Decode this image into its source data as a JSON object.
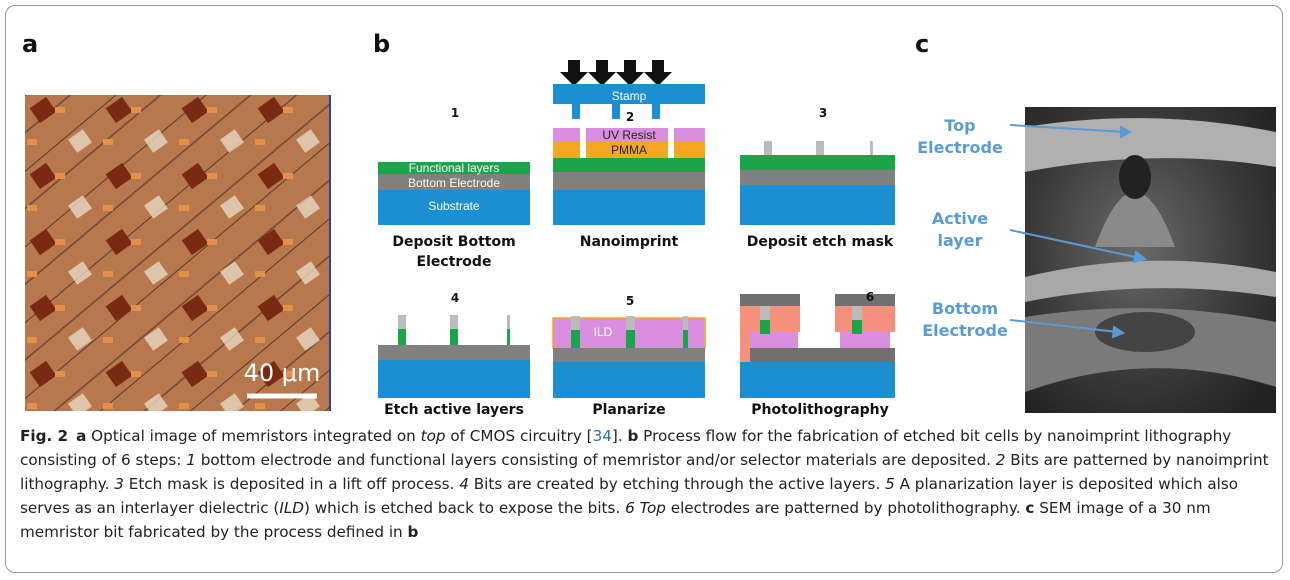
{
  "panels": [
    {
      "label": "a"
    },
    {
      "label": "b"
    },
    {
      "label": "c"
    }
  ],
  "panel_a": {
    "scale_bar": "40 μm"
  },
  "panel_b": {
    "steps": [
      {
        "number": "1",
        "caption": "Deposit Bottom Electrode",
        "layers": [
          "Functional layers",
          "Bottom Electrode",
          "Substrate"
        ]
      },
      {
        "number": "2",
        "caption": "Nanoimprint",
        "layers": [
          "Stamp",
          "UV Resist",
          "PMMA"
        ]
      },
      {
        "number": "3",
        "caption": "Deposit etch mask"
      },
      {
        "number": "4",
        "caption": "Etch active layers"
      },
      {
        "number": "5",
        "caption": "Planarize",
        "layers": [
          "ILD"
        ]
      },
      {
        "number": "6",
        "caption": "Photolithography"
      }
    ]
  },
  "panel_c": {
    "labels": [
      "Top Electrode",
      "Active layer",
      "Bottom Electrode"
    ]
  },
  "caption": {
    "parts": [
      {
        "text": "Fig. 2",
        "style": "bold"
      },
      {
        "text": "a",
        "style": "bold"
      },
      {
        "text": " Optical image of memristors integrated on ",
        "style": "normal"
      },
      {
        "text": "top",
        "style": "italic"
      },
      {
        "text": " of CMOS circuitry [",
        "style": "normal"
      },
      {
        "text": "34",
        "style": "link"
      },
      {
        "text": "]. ",
        "style": "normal"
      },
      {
        "text": "b",
        "style": "bold"
      },
      {
        "text": " Process flow for the fabrication of etched bit cells by nanoimprint lithography consisting of 6 steps: ",
        "style": "normal"
      },
      {
        "text": "1",
        "style": "italic"
      },
      {
        "text": " bottom electrode and functional layers consisting of memristor and/or selector materials are deposited. ",
        "style": "normal"
      },
      {
        "text": "2",
        "style": "italic"
      },
      {
        "text": " Bits are patterned by nanoimprint lithography. ",
        "style": "normal"
      },
      {
        "text": "3",
        "style": "italic"
      },
      {
        "text": " Etch mask is deposited in a lift off process. ",
        "style": "normal"
      },
      {
        "text": "4",
        "style": "italic"
      },
      {
        "text": " Bits are created by etching through the active layers. ",
        "style": "normal"
      },
      {
        "text": "5",
        "style": "italic"
      },
      {
        "text": " A planarization layer is deposited which also serves as an interlayer dielectric (",
        "style": "normal"
      },
      {
        "text": "ILD",
        "style": "italic"
      },
      {
        "text": ") which is etched back to expose the bits. ",
        "style": "normal"
      },
      {
        "text": "6 Top",
        "style": "italic"
      },
      {
        "text": " electrodes are patterned by photolithography. ",
        "style": "normal"
      },
      {
        "text": "c",
        "style": "bold"
      },
      {
        "text": " SEM image of a 30 nm memristor bit fabricated by the process defined in ",
        "style": "normal"
      },
      {
        "text": "b",
        "style": "bold"
      }
    ]
  }
}
